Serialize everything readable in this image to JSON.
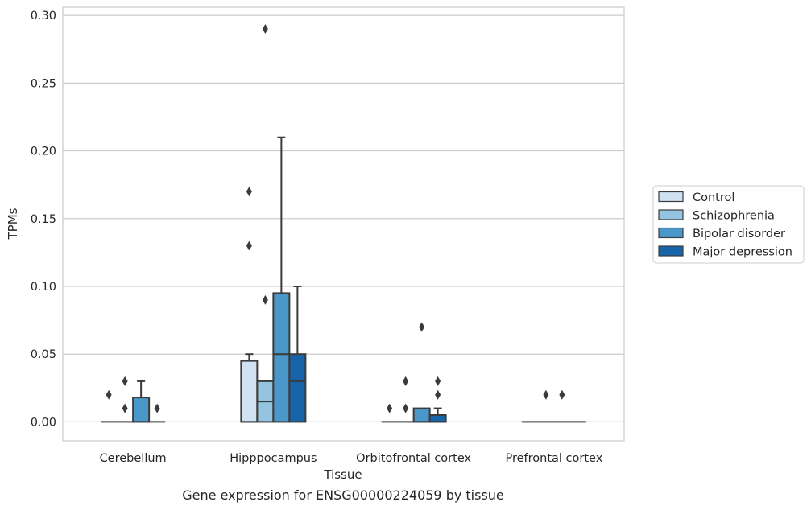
{
  "chart_data": {
    "type": "boxplot",
    "title": "",
    "caption": "Gene expression for ENSG00000224059 by tissue",
    "xlabel": "Tissue",
    "ylabel": "TPMs",
    "ylim": [
      -0.014,
      0.306
    ],
    "yticks": [
      0.0,
      0.05,
      0.1,
      0.15,
      0.2,
      0.25,
      0.3
    ],
    "ytick_labels": [
      "0.00",
      "0.05",
      "0.10",
      "0.15",
      "0.20",
      "0.25",
      "0.30"
    ],
    "grid": true,
    "legend_position": "right",
    "categories": [
      "Cerebellum",
      "Hipppocampus",
      "Orbitofrontal cortex",
      "Prefrontal cortex"
    ],
    "series": [
      {
        "name": "Control",
        "color": "#d0e1f2",
        "boxes": [
          {
            "q1": 0.0,
            "median": 0.0,
            "q3": 0.0,
            "whislo": 0.0,
            "whishi": 0.0,
            "fliers": [
              0.02
            ]
          },
          {
            "q1": 0.0,
            "median": 0.0,
            "q3": 0.045,
            "whislo": 0.0,
            "whishi": 0.05,
            "fliers": [
              0.13,
              0.17
            ]
          },
          {
            "q1": 0.0,
            "median": 0.0,
            "q3": 0.0,
            "whislo": 0.0,
            "whishi": 0.0,
            "fliers": [
              0.01
            ]
          },
          {
            "q1": 0.0,
            "median": 0.0,
            "q3": 0.0,
            "whislo": 0.0,
            "whishi": 0.0,
            "fliers": []
          }
        ]
      },
      {
        "name": "Schizophrenia",
        "color": "#94c4df",
        "boxes": [
          {
            "q1": 0.0,
            "median": 0.0,
            "q3": 0.0,
            "whislo": 0.0,
            "whishi": 0.0,
            "fliers": [
              0.01,
              0.03
            ]
          },
          {
            "q1": 0.0,
            "median": 0.015,
            "q3": 0.03,
            "whislo": 0.0,
            "whishi": 0.03,
            "fliers": [
              0.09,
              0.29
            ]
          },
          {
            "q1": 0.0,
            "median": 0.0,
            "q3": 0.0,
            "whislo": 0.0,
            "whishi": 0.0,
            "fliers": [
              0.01,
              0.03
            ]
          },
          {
            "q1": 0.0,
            "median": 0.0,
            "q3": 0.0,
            "whislo": 0.0,
            "whishi": 0.0,
            "fliers": [
              0.02
            ]
          }
        ]
      },
      {
        "name": "Bipolar disorder",
        "color": "#4a98c9",
        "boxes": [
          {
            "q1": 0.0,
            "median": 0.0,
            "q3": 0.018,
            "whislo": 0.0,
            "whishi": 0.03,
            "fliers": []
          },
          {
            "q1": 0.0,
            "median": 0.05,
            "q3": 0.095,
            "whislo": 0.0,
            "whishi": 0.21,
            "fliers": []
          },
          {
            "q1": 0.0,
            "median": 0.0,
            "q3": 0.01,
            "whislo": 0.0,
            "whishi": 0.01,
            "fliers": [
              0.07
            ]
          },
          {
            "q1": 0.0,
            "median": 0.0,
            "q3": 0.0,
            "whislo": 0.0,
            "whishi": 0.0,
            "fliers": [
              0.02
            ]
          }
        ]
      },
      {
        "name": "Major depression",
        "color": "#1764ab",
        "boxes": [
          {
            "q1": 0.0,
            "median": 0.0,
            "q3": 0.0,
            "whislo": 0.0,
            "whishi": 0.0,
            "fliers": [
              0.01
            ]
          },
          {
            "q1": 0.0,
            "median": 0.03,
            "q3": 0.05,
            "whislo": 0.0,
            "whishi": 0.1,
            "fliers": []
          },
          {
            "q1": 0.0,
            "median": 0.0,
            "q3": 0.005,
            "whislo": 0.0,
            "whishi": 0.01,
            "fliers": [
              0.02,
              0.03
            ]
          },
          {
            "q1": 0.0,
            "median": 0.0,
            "q3": 0.0,
            "whislo": 0.0,
            "whishi": 0.0,
            "fliers": []
          }
        ]
      }
    ],
    "legend": [
      "Control",
      "Schizophrenia",
      "Bipolar disorder",
      "Major depression"
    ]
  }
}
